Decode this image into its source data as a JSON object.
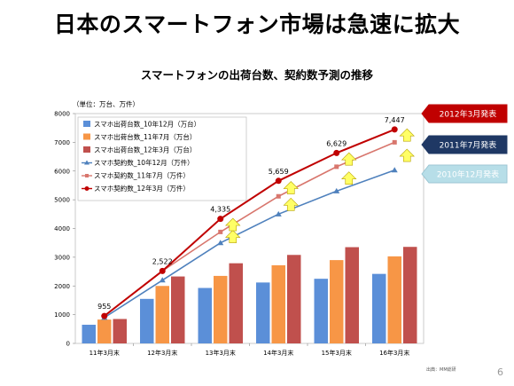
{
  "title": "日本のスマートフォン市場は急速に拡大",
  "subtitle": "スマートフォンの出荷台数、契約数予測の推移",
  "unit_label": "（単位：万台、万件）",
  "source": "出典：MM総研",
  "page_number": "6",
  "annotations": [
    {
      "text": "2012年3月発表",
      "bg": "#c00000"
    },
    {
      "text": "2011年7月発表",
      "bg": "#1f3864"
    },
    {
      "text": "2010年12月発表",
      "bg": "#b7dee8"
    }
  ],
  "chart_data": {
    "type": "bar",
    "categories": [
      "11年3月末",
      "12年3月末",
      "13年3月末",
      "14年3月末",
      "15年3月末",
      "16年3月末"
    ],
    "ylim": [
      0,
      8000
    ],
    "yticks": [
      0,
      1000,
      2000,
      3000,
      4000,
      5000,
      6000,
      7000,
      8000
    ],
    "legend_position": "top-left",
    "bar_series": [
      {
        "name": "スマホ出荷台数_10年12月（万台）",
        "color": "#5b8fd8",
        "values": [
          650,
          1550,
          1930,
          2120,
          2250,
          2420
        ]
      },
      {
        "name": "スマホ出荷台数_11年7月（万台）",
        "color": "#f79646",
        "values": [
          830,
          2000,
          2350,
          2720,
          2900,
          3030
        ]
      },
      {
        "name": "スマホ出荷台数_12年3月（万台）",
        "color": "#c0504d",
        "values": [
          850,
          2330,
          2790,
          3080,
          3350,
          3360
        ]
      }
    ],
    "line_series": [
      {
        "name": "スマホ契約数_10年12月（万件）",
        "color": "#4f81bd",
        "marker": "triangle",
        "values": [
          900,
          2200,
          3500,
          4500,
          5300,
          6030
        ]
      },
      {
        "name": "スマホ契約数_11年7月（万件）",
        "color": "#d8766d",
        "marker": "square",
        "values": [
          955,
          2522,
          3880,
          5120,
          6150,
          7000
        ]
      },
      {
        "name": "スマホ契約数_12年3月（万件）",
        "color": "#c00000",
        "marker": "circle",
        "values": [
          955,
          2522,
          4335,
          5659,
          6629,
          7447
        ]
      }
    ],
    "data_labels": [
      "955",
      "2,522",
      "4,335",
      "5,659",
      "6,629",
      "7,447"
    ]
  }
}
